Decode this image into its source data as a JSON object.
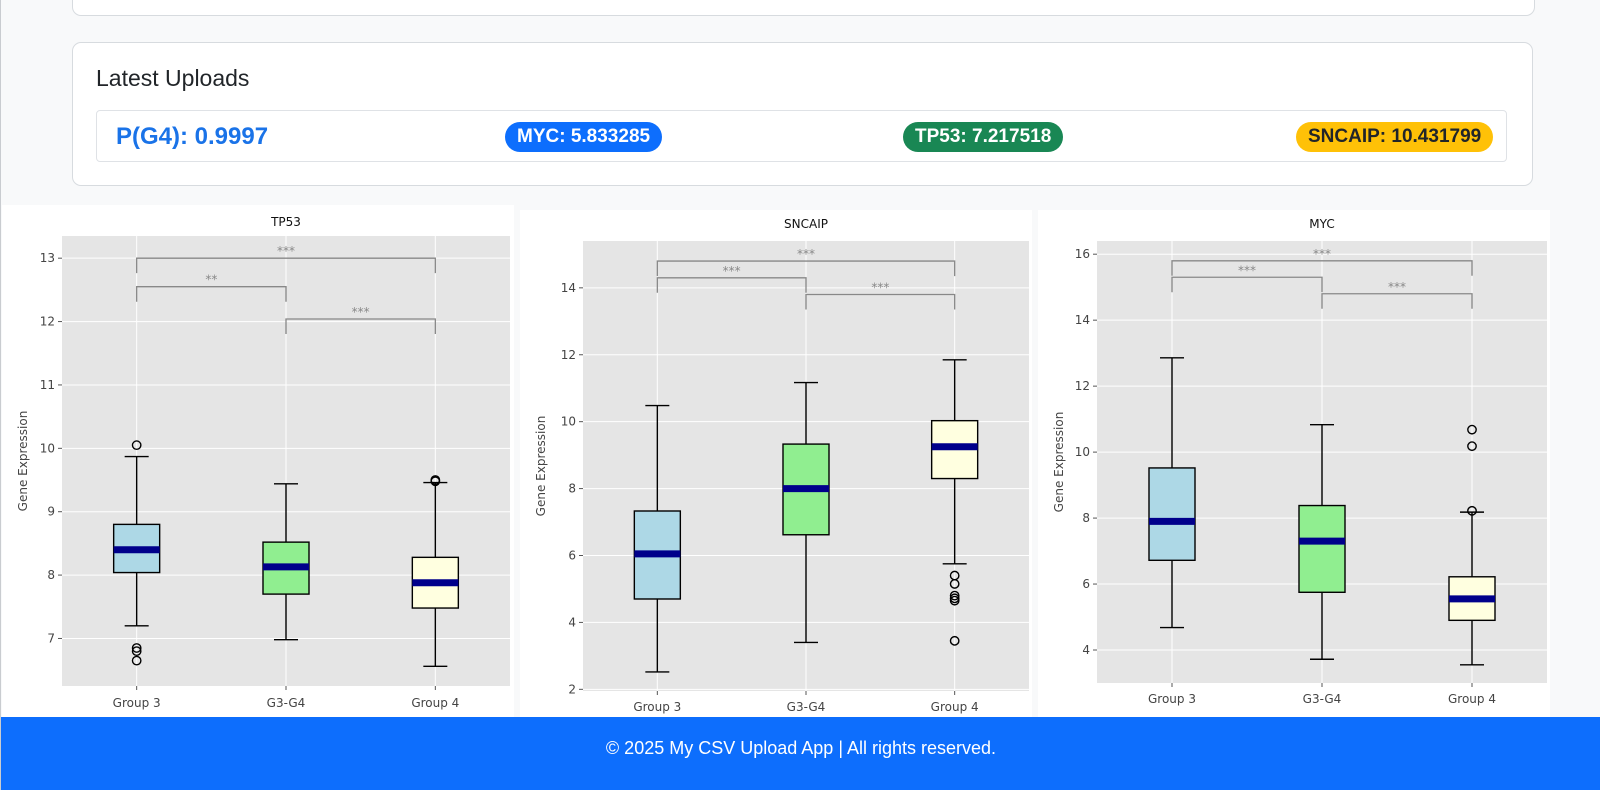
{
  "latest_uploads": {
    "title": "Latest Uploads",
    "probability": "P(G4): 0.9997",
    "badges": {
      "myc": "MYC: 5.833285",
      "tp53": "TP53: 7.217518",
      "sncaip": "SNCAIP: 10.431799"
    }
  },
  "colors": {
    "group3": "#add8e6",
    "g3g4": "#90ee90",
    "group4": "#ffffe0",
    "median": "#00008b",
    "plot_bg": "#e5e5e5",
    "bracket": "#888888"
  },
  "chart_data": [
    {
      "type": "box",
      "title": "TP53",
      "ylabel": "Gene Expression",
      "categories": [
        "Group 3",
        "G3-G4",
        "Group 4"
      ],
      "ylim": [
        6.25,
        13.35
      ],
      "yticks": [
        7,
        8,
        9,
        10,
        11,
        12,
        13
      ],
      "grid": true,
      "boxes": [
        {
          "q1": 8.04,
          "median": 8.4,
          "q3": 8.8,
          "whisker_low": 7.2,
          "whisker_high": 9.87,
          "outliers": [
            10.05,
            6.85,
            6.8,
            6.65
          ]
        },
        {
          "q1": 7.7,
          "median": 8.13,
          "q3": 8.52,
          "whisker_low": 6.98,
          "whisker_high": 9.44,
          "outliers": []
        },
        {
          "q1": 7.48,
          "median": 7.88,
          "q3": 8.28,
          "whisker_low": 6.56,
          "whisker_high": 9.46,
          "outliers": [
            9.5,
            9.48
          ]
        }
      ],
      "significance": [
        {
          "from": 0,
          "to": 2,
          "label": "***",
          "level": 13.0
        },
        {
          "from": 0,
          "to": 1,
          "label": "**",
          "level": 12.55
        },
        {
          "from": 1,
          "to": 2,
          "label": "***",
          "level": 12.04
        }
      ]
    },
    {
      "type": "box",
      "title": "SNCAIP",
      "ylabel": "Gene Expression",
      "categories": [
        "Group 3",
        "G3-G4",
        "Group 4"
      ],
      "ylim": [
        1.95,
        15.4
      ],
      "yticks": [
        2,
        4,
        6,
        8,
        10,
        12,
        14
      ],
      "grid": true,
      "boxes": [
        {
          "q1": 4.7,
          "median": 6.05,
          "q3": 7.33,
          "whisker_low": 2.52,
          "whisker_high": 10.48,
          "outliers": []
        },
        {
          "q1": 6.62,
          "median": 8.0,
          "q3": 9.33,
          "whisker_low": 3.4,
          "whisker_high": 11.17,
          "outliers": []
        },
        {
          "q1": 8.3,
          "median": 9.25,
          "q3": 10.03,
          "whisker_low": 5.75,
          "whisker_high": 11.85,
          "outliers": [
            5.4,
            5.15,
            4.8,
            4.72,
            4.65,
            3.45
          ]
        }
      ],
      "significance": [
        {
          "from": 0,
          "to": 2,
          "label": "***",
          "level": 14.8
        },
        {
          "from": 0,
          "to": 1,
          "label": "***",
          "level": 14.3
        },
        {
          "from": 1,
          "to": 2,
          "label": "***",
          "level": 13.8
        }
      ]
    },
    {
      "type": "box",
      "title": "MYC",
      "ylabel": "Gene Expression",
      "categories": [
        "Group 3",
        "G3-G4",
        "Group 4"
      ],
      "ylim": [
        3.0,
        16.4
      ],
      "yticks": [
        4,
        6,
        8,
        10,
        12,
        14,
        16
      ],
      "grid": true,
      "boxes": [
        {
          "q1": 6.72,
          "median": 7.9,
          "q3": 9.52,
          "whisker_low": 4.68,
          "whisker_high": 12.86,
          "outliers": []
        },
        {
          "q1": 5.75,
          "median": 7.3,
          "q3": 8.38,
          "whisker_low": 3.72,
          "whisker_high": 10.83,
          "outliers": []
        },
        {
          "q1": 4.9,
          "median": 5.55,
          "q3": 6.22,
          "whisker_low": 3.55,
          "whisker_high": 8.18,
          "outliers": [
            10.68,
            10.18,
            8.22
          ]
        }
      ],
      "significance": [
        {
          "from": 0,
          "to": 2,
          "label": "***",
          "level": 15.8
        },
        {
          "from": 0,
          "to": 1,
          "label": "***",
          "level": 15.3
        },
        {
          "from": 1,
          "to": 2,
          "label": "***",
          "level": 14.8
        }
      ]
    }
  ],
  "footer": {
    "text": "© 2025 My CSV Upload App | All rights reserved."
  }
}
